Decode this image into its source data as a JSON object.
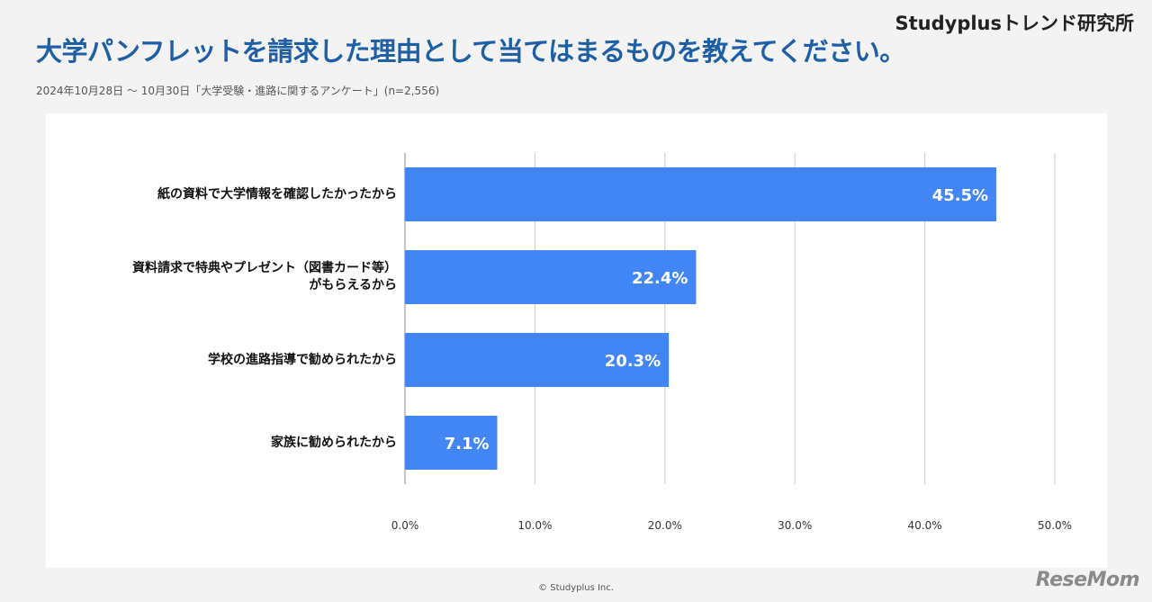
{
  "header": {
    "brand": "Studyplusトレンド研究所",
    "title": "大学パンフレットを請求した理由として当てはまるものを教えてください。",
    "subtitle": "2024年10月28日 〜 10月30日「大学受験・進路に関するアンケート」(n=2,556)"
  },
  "footer": {
    "copyright": "© Studyplus Inc.",
    "logo": "ReseMom"
  },
  "colors": {
    "bar": "#4285f4",
    "title": "#1f5fa6",
    "grid": "#cccccc"
  },
  "chart_data": {
    "type": "bar",
    "orientation": "horizontal",
    "categories": [
      [
        "紙の資料で大学情報を確認したかったから"
      ],
      [
        "資料請求で特典やプレゼント（図書カード等）",
        "がもらえるから"
      ],
      [
        "学校の進路指導で勧められたから"
      ],
      [
        "家族に勧められたから"
      ]
    ],
    "values": [
      45.5,
      22.4,
      20.3,
      7.1
    ],
    "value_labels": [
      "45.5%",
      "22.4%",
      "20.3%",
      "7.1%"
    ],
    "xlim": [
      0,
      50
    ],
    "xticks": [
      "0.0%",
      "10.0%",
      "20.0%",
      "30.0%",
      "40.0%",
      "50.0%"
    ],
    "grid": true
  }
}
